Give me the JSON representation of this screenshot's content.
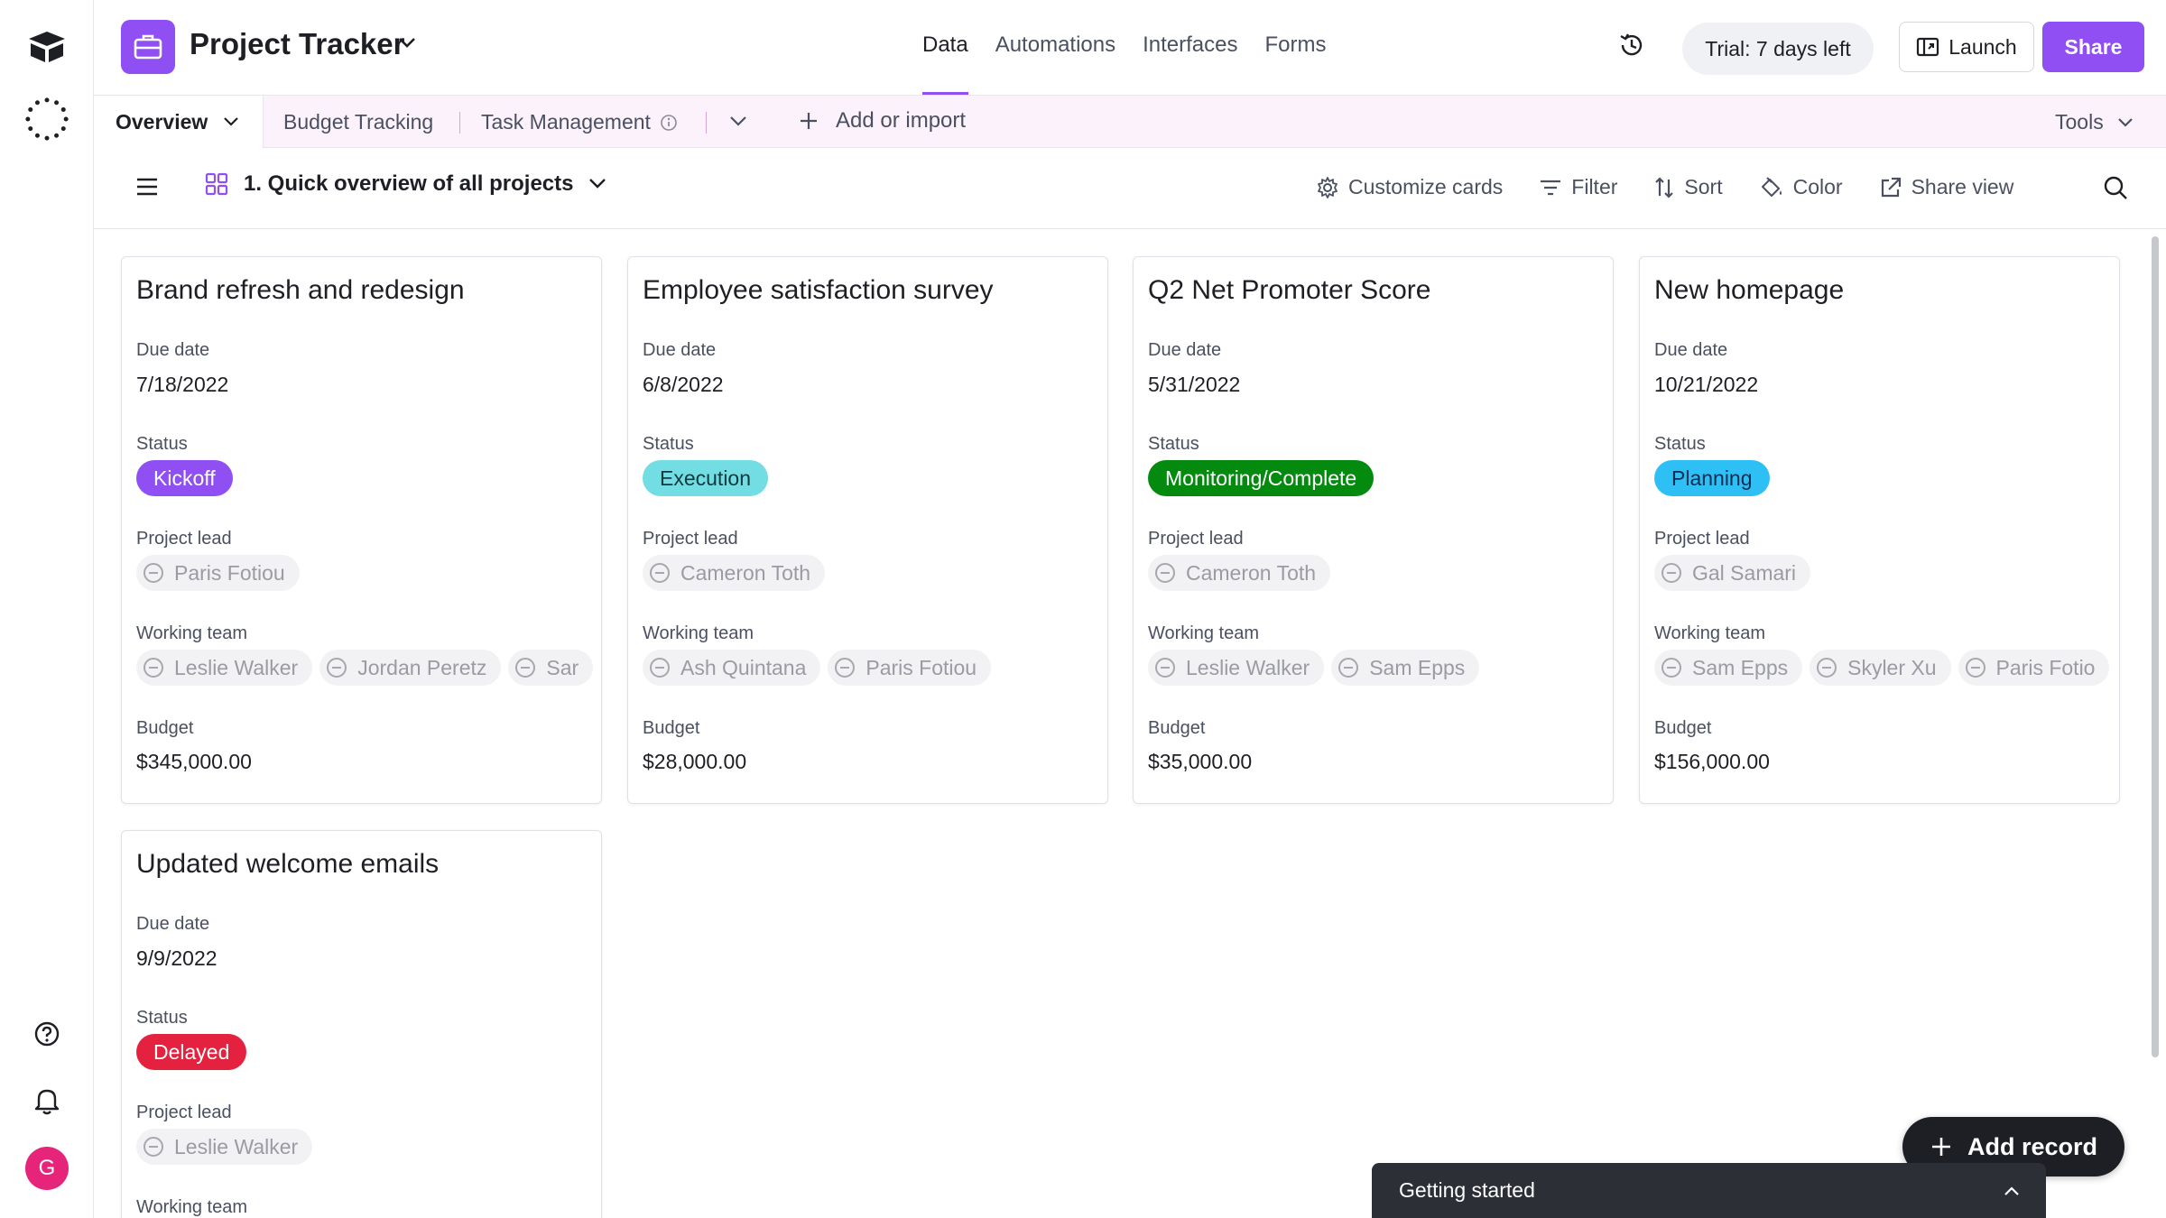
{
  "header": {
    "base_title": "Project Tracker",
    "nav": [
      "Data",
      "Automations",
      "Interfaces",
      "Forms"
    ],
    "active_nav": "Data",
    "trial": "Trial: 7 days left",
    "launch": "Launch",
    "share": "Share"
  },
  "tables": {
    "active": "Overview",
    "items": [
      "Budget Tracking",
      "Task Management"
    ],
    "add_import": "Add or import",
    "tools": "Tools"
  },
  "view": {
    "name": "1. Quick overview of all projects",
    "tools": [
      "Customize cards",
      "Filter",
      "Sort",
      "Color",
      "Share view"
    ]
  },
  "fields": {
    "due_date": "Due date",
    "status": "Status",
    "project_lead": "Project lead",
    "working_team": "Working team",
    "budget": "Budget"
  },
  "colors": {
    "accent": "#8f4ff3",
    "kickoff": "#8f4ff3",
    "execution": "#72dde3",
    "monitoring": "#048a0e",
    "planning": "#2ec0f5",
    "delayed": "#e4213e"
  },
  "cards": [
    {
      "title": "Brand refresh and redesign",
      "due_date": "7/18/2022",
      "status": "Kickoff",
      "project_lead": "Paris Fotiou",
      "working_team": [
        "Leslie Walker",
        "Jordan Peretz",
        "Sar"
      ],
      "budget": "$345,000.00"
    },
    {
      "title": "Employee satisfaction survey",
      "due_date": "6/8/2022",
      "status": "Execution",
      "project_lead": "Cameron Toth",
      "working_team": [
        "Ash Quintana",
        "Paris Fotiou"
      ],
      "budget": "$28,000.00"
    },
    {
      "title": "Q2 Net Promoter Score",
      "due_date": "5/31/2022",
      "status": "Monitoring/Complete",
      "project_lead": "Cameron Toth",
      "working_team": [
        "Leslie Walker",
        "Sam Epps"
      ],
      "budget": "$35,000.00"
    },
    {
      "title": "New homepage",
      "due_date": "10/21/2022",
      "status": "Planning",
      "project_lead": "Gal Samari",
      "working_team": [
        "Sam Epps",
        "Skyler Xu",
        "Paris Fotio"
      ],
      "budget": "$156,000.00"
    },
    {
      "title": "Updated welcome emails",
      "due_date": "9/9/2022",
      "status": "Delayed",
      "project_lead": "Leslie Walker"
    }
  ],
  "add_record": "Add record",
  "getting_started": "Getting started",
  "user_initial": "G"
}
